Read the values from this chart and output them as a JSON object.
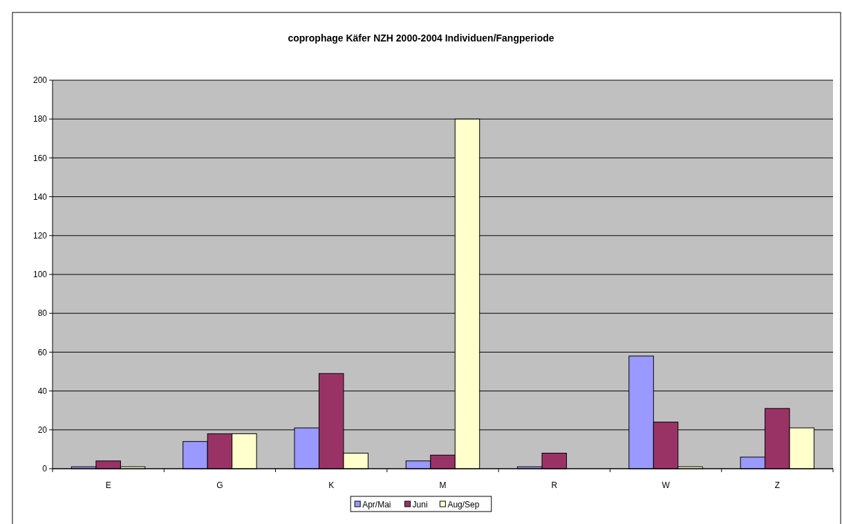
{
  "chart_data": {
    "type": "bar",
    "title": "coprophage Käfer NZH 2000-2004 Individuen/Fangperiode",
    "categories": [
      "E",
      "G",
      "K",
      "M",
      "R",
      "W",
      "Z"
    ],
    "series": [
      {
        "name": "Apr/Mai",
        "color": "#9999ff",
        "values": [
          1,
          14,
          21,
          4,
          1,
          58,
          6
        ]
      },
      {
        "name": "Juni",
        "color": "#993366",
        "values": [
          4,
          18,
          49,
          7,
          8,
          24,
          31
        ]
      },
      {
        "name": "Aug/Sep",
        "color": "#ffffcc",
        "values": [
          1,
          18,
          8,
          180,
          0,
          1,
          21
        ]
      }
    ],
    "ylim": [
      0,
      200
    ],
    "yticks": [
      0,
      20,
      40,
      60,
      80,
      100,
      120,
      140,
      160,
      180,
      200
    ],
    "grid": "y",
    "legend": "bottom"
  }
}
